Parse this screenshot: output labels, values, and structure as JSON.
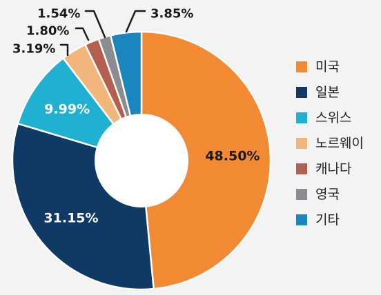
{
  "chart_data": {
    "type": "pie",
    "donut": true,
    "categories": [
      "미국",
      "일본",
      "스위스",
      "노르웨이",
      "캐나다",
      "영국",
      "기타"
    ],
    "values": [
      48.5,
      31.15,
      9.99,
      3.19,
      1.8,
      1.54,
      3.85
    ],
    "value_labels": [
      "48.50%",
      "31.15%",
      "9.99%",
      "3.19%",
      "1.80%",
      "1.54%",
      "3.85%"
    ],
    "colors": [
      "#f28a33",
      "#0f3a66",
      "#1fb0d2",
      "#f2b57a",
      "#b5604f",
      "#8a8c8f",
      "#1a86bd"
    ],
    "title": "",
    "legend_position": "right",
    "start_angle": "12 o'clock, clockwise"
  }
}
